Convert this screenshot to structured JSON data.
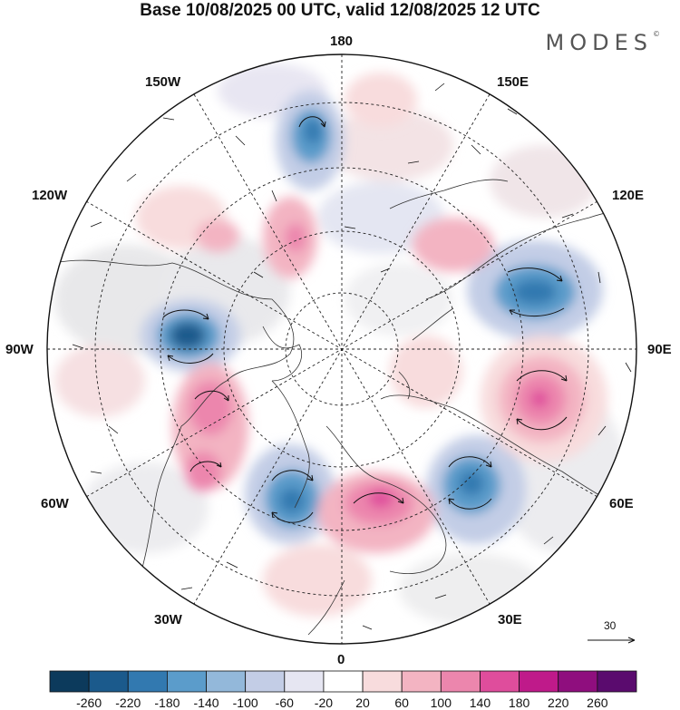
{
  "title": "Base 10/08/2025 00 UTC, valid 12/08/2025 12 UTC",
  "brand": "MODES",
  "brand_mark": "©",
  "longitude_labels": {
    "top": "180",
    "bottom": "0",
    "left": "90W",
    "right": "90E",
    "upper_left_1": "150W",
    "upper_left_2": "120W",
    "upper_right_1": "150E",
    "upper_right_2": "120E",
    "lower_left_1": "60W",
    "lower_left_2": "30W",
    "lower_right_1": "60E",
    "lower_right_2": "30E"
  },
  "vector_reference": "30",
  "colorbar": {
    "labels": [
      "-260",
      "-220",
      "-180",
      "-140",
      "-100",
      "-60",
      "-20",
      "20",
      "60",
      "100",
      "140",
      "180",
      "220",
      "260"
    ],
    "colors": [
      "#0c3a5c",
      "#1b5a8c",
      "#3279b0",
      "#5b9ccb",
      "#93b8da",
      "#c3cde6",
      "#e6e6f2",
      "#ffffff",
      "#f8dcdd",
      "#f3b4c2",
      "#ec86ad",
      "#df4d9c",
      "#bf1a8a",
      "#8f0e7e",
      "#5a0b6e"
    ]
  },
  "anomalies": [
    {
      "name": "low-hudson-bay",
      "sign": "negative",
      "value": -200
    },
    {
      "name": "low-siberia-north",
      "sign": "negative",
      "value": -160
    },
    {
      "name": "low-beaufort",
      "sign": "negative",
      "value": -140
    },
    {
      "name": "low-greenland-sea",
      "sign": "negative",
      "value": -180
    },
    {
      "name": "low-west-russia",
      "sign": "negative",
      "value": -160
    },
    {
      "name": "high-central-siberia",
      "sign": "positive",
      "value": 180
    },
    {
      "name": "high-scandinavia",
      "sign": "positive",
      "value": 160
    },
    {
      "name": "high-labrador",
      "sign": "positive",
      "value": 140
    },
    {
      "name": "high-north-atlantic",
      "sign": "positive",
      "value": 120
    },
    {
      "name": "high-alaska",
      "sign": "positive",
      "value": 100
    },
    {
      "name": "high-east-siberia",
      "sign": "positive",
      "value": 80
    }
  ]
}
